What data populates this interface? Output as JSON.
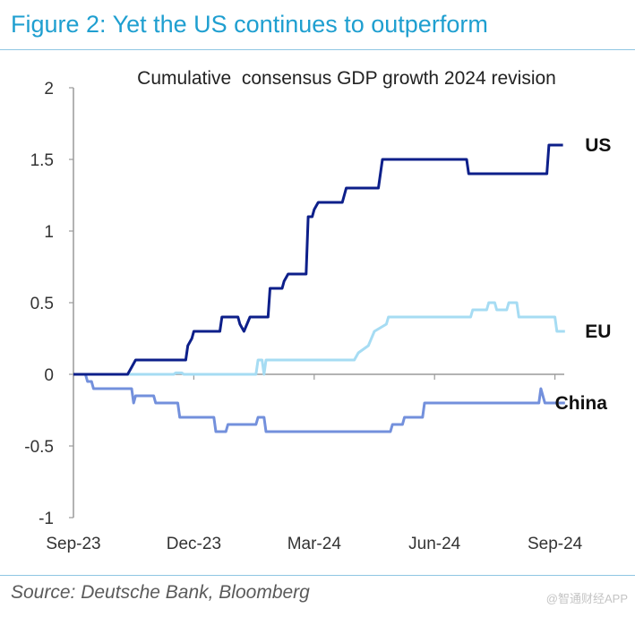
{
  "figure": {
    "title": "Figure 2: Yet the US continues to outperform",
    "source": "Source: Deutsche Bank, Bloomberg",
    "watermark": "@智通财经APP"
  },
  "colors": {
    "us": "#0d1f8a",
    "eu": "#a6dcf3",
    "china": "#7390dc",
    "title": "#1f9fd0"
  },
  "chart_data": {
    "type": "line",
    "title": "Cumulative  consensus GDP growth 2024 revision",
    "xlabel": "",
    "ylabel": "",
    "ylim": [
      -1,
      2
    ],
    "yticks": [
      -1,
      -0.5,
      0,
      0.5,
      1,
      1.5,
      2
    ],
    "ytick_labels": [
      "-1",
      "-0.5",
      "0",
      "0.5",
      "1",
      "1.5",
      "2"
    ],
    "xlim": [
      0,
      12.3
    ],
    "xticks": [
      0,
      3,
      6,
      9,
      12
    ],
    "xtick_labels": [
      "Sep-23",
      "Dec-23",
      "Mar-24",
      "Jun-24",
      "Sep-24"
    ],
    "x_units": "months since Sep-2023",
    "series": [
      {
        "name": "US",
        "label": "US",
        "color_key": "us",
        "points": [
          [
            0,
            0
          ],
          [
            1.35,
            0
          ],
          [
            1.45,
            0.05
          ],
          [
            1.55,
            0.1
          ],
          [
            2.8,
            0.1
          ],
          [
            2.85,
            0.2
          ],
          [
            2.95,
            0.25
          ],
          [
            3,
            0.3
          ],
          [
            3.65,
            0.3
          ],
          [
            3.7,
            0.4
          ],
          [
            4.1,
            0.4
          ],
          [
            4.15,
            0.35
          ],
          [
            4.25,
            0.3
          ],
          [
            4.4,
            0.4
          ],
          [
            4.85,
            0.4
          ],
          [
            4.9,
            0.6
          ],
          [
            5.2,
            0.6
          ],
          [
            5.25,
            0.65
          ],
          [
            5.35,
            0.7
          ],
          [
            5.8,
            0.7
          ],
          [
            5.85,
            1.1
          ],
          [
            5.95,
            1.1
          ],
          [
            6,
            1.15
          ],
          [
            6.1,
            1.2
          ],
          [
            6.7,
            1.2
          ],
          [
            6.8,
            1.3
          ],
          [
            7.6,
            1.3
          ],
          [
            7.7,
            1.5
          ],
          [
            9.8,
            1.5
          ],
          [
            9.85,
            1.4
          ],
          [
            11.8,
            1.4
          ],
          [
            11.85,
            1.6
          ],
          [
            12.2,
            1.6
          ]
        ]
      },
      {
        "name": "EU",
        "label": "EU",
        "color_key": "eu",
        "points": [
          [
            0,
            0
          ],
          [
            2.5,
            0
          ],
          [
            2.55,
            0.01
          ],
          [
            2.7,
            0.01
          ],
          [
            2.75,
            0
          ],
          [
            4.55,
            0
          ],
          [
            4.6,
            0.1
          ],
          [
            4.7,
            0.1
          ],
          [
            4.75,
            0
          ],
          [
            4.8,
            0.1
          ],
          [
            7,
            0.1
          ],
          [
            7.1,
            0.15
          ],
          [
            7.35,
            0.2
          ],
          [
            7.5,
            0.3
          ],
          [
            7.8,
            0.35
          ],
          [
            7.85,
            0.4
          ],
          [
            9.9,
            0.4
          ],
          [
            9.95,
            0.45
          ],
          [
            10.3,
            0.45
          ],
          [
            10.35,
            0.5
          ],
          [
            10.5,
            0.5
          ],
          [
            10.55,
            0.45
          ],
          [
            10.8,
            0.45
          ],
          [
            10.85,
            0.5
          ],
          [
            11.05,
            0.5
          ],
          [
            11.1,
            0.4
          ],
          [
            12,
            0.4
          ],
          [
            12.05,
            0.3
          ],
          [
            12.25,
            0.3
          ]
        ]
      },
      {
        "name": "China",
        "label": "China",
        "color_key": "china",
        "points": [
          [
            0,
            0
          ],
          [
            0.3,
            0
          ],
          [
            0.35,
            -0.05
          ],
          [
            0.45,
            -0.05
          ],
          [
            0.5,
            -0.1
          ],
          [
            1.45,
            -0.1
          ],
          [
            1.5,
            -0.2
          ],
          [
            1.55,
            -0.15
          ],
          [
            2,
            -0.15
          ],
          [
            2.05,
            -0.2
          ],
          [
            2.6,
            -0.2
          ],
          [
            2.65,
            -0.3
          ],
          [
            3.5,
            -0.3
          ],
          [
            3.55,
            -0.4
          ],
          [
            3.8,
            -0.4
          ],
          [
            3.85,
            -0.35
          ],
          [
            4.55,
            -0.35
          ],
          [
            4.6,
            -0.3
          ],
          [
            4.75,
            -0.3
          ],
          [
            4.8,
            -0.4
          ],
          [
            7.9,
            -0.4
          ],
          [
            7.95,
            -0.35
          ],
          [
            8.2,
            -0.35
          ],
          [
            8.25,
            -0.3
          ],
          [
            8.7,
            -0.3
          ],
          [
            8.75,
            -0.2
          ],
          [
            11.6,
            -0.2
          ],
          [
            11.65,
            -0.1
          ],
          [
            11.75,
            -0.2
          ],
          [
            12.25,
            -0.2
          ]
        ]
      }
    ]
  }
}
